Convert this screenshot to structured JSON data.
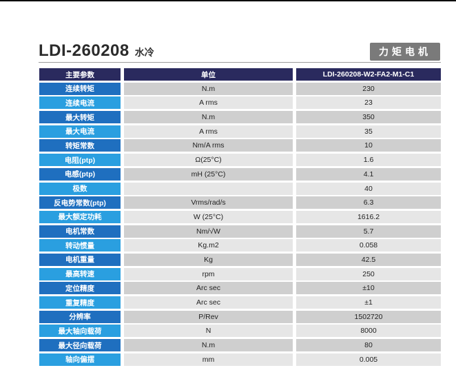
{
  "header": {
    "title": "LDI-260208",
    "subtitle": "水冷",
    "badge": "力矩电机"
  },
  "table": {
    "columns": [
      "主要参数",
      "单位",
      "LDI-260208-W2-FA2-M1-C1"
    ],
    "rows": [
      {
        "param": "连续转矩",
        "unit": "N.m",
        "value": "230"
      },
      {
        "param": "连续电流",
        "unit": "A rms",
        "value": "23"
      },
      {
        "param": "最大转矩",
        "unit": "N.m",
        "value": "350"
      },
      {
        "param": "最大电流",
        "unit": "A rms",
        "value": "35"
      },
      {
        "param": "转矩常数",
        "unit": "Nm/A rms",
        "value": "10"
      },
      {
        "param": "电阻(ptp)",
        "unit": "Ω(25°C)",
        "value": "1.6"
      },
      {
        "param": "电感(ptp)",
        "unit": "mH (25°C)",
        "value": "4.1"
      },
      {
        "param": "极数",
        "unit": "",
        "value": "40"
      },
      {
        "param": "反电势常数(ptp)",
        "unit": "Vrms/rad/s",
        "value": "6.3"
      },
      {
        "param": "最大额定功耗",
        "unit": "W (25°C)",
        "value": "1616.2"
      },
      {
        "param": "电机常数",
        "unit": "Nm/√W",
        "value": "5.7"
      },
      {
        "param": "转动惯量",
        "unit": "Kg.m2",
        "value": "0.058"
      },
      {
        "param": "电机重量",
        "unit": "Kg",
        "value": "42.5"
      },
      {
        "param": "最高转速",
        "unit": "rpm",
        "value": "250"
      },
      {
        "param": "定位精度",
        "unit": "Arc sec",
        "value": "±10"
      },
      {
        "param": "重复精度",
        "unit": "Arc sec",
        "value": "±1"
      },
      {
        "param": "分辨率",
        "unit": "P/Rev",
        "value": "1502720"
      },
      {
        "param": "最大轴向载荷",
        "unit": "N",
        "value": "8000"
      },
      {
        "param": "最大径向载荷",
        "unit": "N.m",
        "value": "80"
      },
      {
        "param": "轴向偏摆",
        "unit": "mm",
        "value": "0.005"
      }
    ]
  }
}
